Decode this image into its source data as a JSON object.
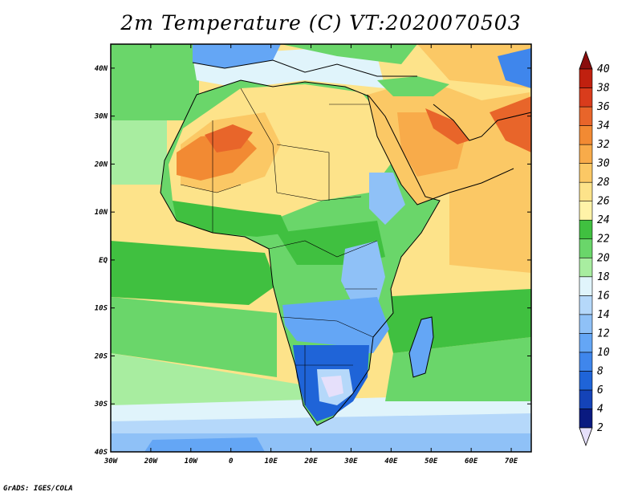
{
  "title": "2m Temperature (C) VT:2020070503",
  "credit": "GrADS: IGES/COLA",
  "map": {
    "lon_range": [
      -30,
      75
    ],
    "lat_range": [
      -40,
      45
    ],
    "lon_ticks": [
      {
        "value": -30,
        "label": "30W"
      },
      {
        "value": -20,
        "label": "20W"
      },
      {
        "value": -10,
        "label": "10W"
      },
      {
        "value": 0,
        "label": "0"
      },
      {
        "value": 10,
        "label": "10E"
      },
      {
        "value": 20,
        "label": "20E"
      },
      {
        "value": 30,
        "label": "30E"
      },
      {
        "value": 40,
        "label": "40E"
      },
      {
        "value": 50,
        "label": "50E"
      },
      {
        "value": 60,
        "label": "60E"
      },
      {
        "value": 70,
        "label": "70E"
      }
    ],
    "lat_ticks": [
      {
        "value": 40,
        "label": "40N"
      },
      {
        "value": 30,
        "label": "30N"
      },
      {
        "value": 20,
        "label": "20N"
      },
      {
        "value": 10,
        "label": "10N"
      },
      {
        "value": 0,
        "label": "EQ"
      },
      {
        "value": -10,
        "label": "10S"
      },
      {
        "value": -20,
        "label": "20S"
      },
      {
        "value": -30,
        "label": "30S"
      },
      {
        "value": -40,
        "label": "40S"
      }
    ]
  },
  "colorbar": {
    "levels": [
      "2",
      "4",
      "6",
      "8",
      "10",
      "12",
      "14",
      "16",
      "18",
      "20",
      "22",
      "24",
      "26",
      "28",
      "30",
      "32",
      "34",
      "36",
      "38",
      "40"
    ],
    "colors": [
      "#0a1a80",
      "#1443b8",
      "#1f64d8",
      "#3f86ec",
      "#64a6f5",
      "#8fc1f7",
      "#b5d8fa",
      "#e0f4fb",
      "#a8eda0",
      "#6ad66a",
      "#40c040",
      "#fff3a8",
      "#fde38a",
      "#fbc865",
      "#f8ab4a",
      "#f28a33",
      "#e8652a",
      "#d93c1c",
      "#c0200f",
      "#a01010"
    ],
    "min_color": "#e6e0fb",
    "max_color": "#8a0d0d"
  }
}
